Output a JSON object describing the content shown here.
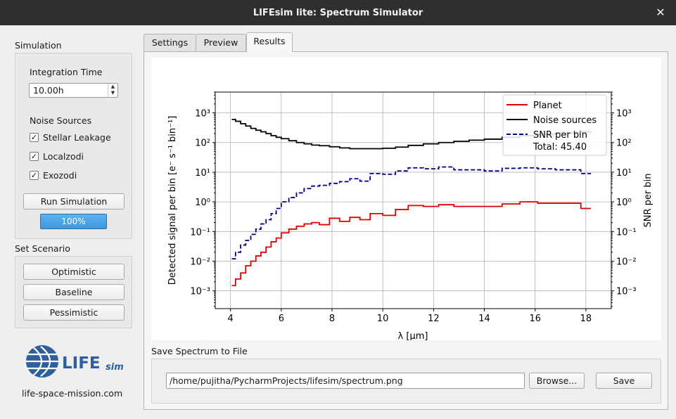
{
  "window": {
    "title": "LIFEsim lite: Spectrum Simulator",
    "close_glyph": "✕"
  },
  "simulation": {
    "group_label": "Simulation",
    "integration_time_label": "Integration Time",
    "integration_time_value": "10.00h",
    "noise_sources_label": "Noise Sources",
    "noise_sources": [
      {
        "label": "Stellar Leakage",
        "checked": true
      },
      {
        "label": "Localzodi",
        "checked": true
      },
      {
        "label": "Exozodi",
        "checked": true
      }
    ],
    "run_button": "Run Simulation",
    "progress_text": "100%",
    "progress_value": 100
  },
  "scenario": {
    "group_label": "Set Scenario",
    "buttons": [
      "Optimistic",
      "Baseline",
      "Pessimistic"
    ]
  },
  "logo": {
    "wordmark": "LIFE",
    "suffix": "sim",
    "url_text": "life-space-mission.com"
  },
  "tabs": [
    {
      "label": "Settings",
      "active": false
    },
    {
      "label": "Preview",
      "active": false
    },
    {
      "label": "Results",
      "active": true
    }
  ],
  "save": {
    "label": "Save Spectrum to File",
    "path": "/home/pujitha/PycharmProjects/lifesim/spectrum.png",
    "browse_button": "Browse...",
    "save_button": "Save"
  },
  "chart_data": {
    "type": "line",
    "xlabel": "λ [μm]",
    "ylabel_left": "Detected signal per bin [e⁻ s⁻¹ bin⁻¹]",
    "ylabel_right": "SNR per bin",
    "xlim": [
      3.4,
      19.0
    ],
    "xticks": [
      4,
      6,
      8,
      10,
      12,
      14,
      16,
      18
    ],
    "ylim_log": [
      -3.6,
      3.7
    ],
    "yticks_log": [
      -3,
      -2,
      -1,
      0,
      1,
      2,
      3
    ],
    "legend_position": "top-right",
    "legend": [
      "Planet",
      "Noise sources",
      "SNR per bin",
      "Total: 45.40"
    ],
    "grid": true,
    "colors": {
      "planet": "#e00000",
      "noise": "#000000",
      "snr": "#00008b"
    },
    "series": [
      {
        "name": "Planet",
        "step": true,
        "x": [
          4.05,
          4.2,
          4.4,
          4.6,
          4.8,
          5.0,
          5.2,
          5.4,
          5.6,
          5.8,
          6.0,
          6.3,
          6.6,
          6.9,
          7.2,
          7.5,
          7.9,
          8.3,
          8.7,
          9.1,
          9.5,
          10.0,
          10.5,
          11.0,
          11.6,
          12.2,
          12.8,
          13.4,
          14.0,
          14.7,
          15.4,
          16.1,
          16.8,
          17.8,
          18.2
        ],
        "y": [
          0.0015,
          0.0025,
          0.004,
          0.007,
          0.01,
          0.015,
          0.02,
          0.03,
          0.045,
          0.06,
          0.09,
          0.12,
          0.15,
          0.18,
          0.2,
          0.17,
          0.28,
          0.22,
          0.3,
          0.25,
          0.4,
          0.35,
          0.55,
          0.75,
          0.7,
          0.8,
          0.7,
          0.7,
          0.7,
          0.85,
          1.0,
          0.9,
          0.9,
          0.6,
          0.6
        ]
      },
      {
        "name": "Noise sources",
        "step": true,
        "x": [
          4.05,
          4.2,
          4.4,
          4.6,
          4.8,
          5.0,
          5.2,
          5.4,
          5.6,
          5.8,
          6.0,
          6.3,
          6.6,
          6.9,
          7.2,
          7.5,
          7.9,
          8.3,
          8.7,
          9.1,
          9.5,
          10.0,
          10.5,
          11.0,
          11.6,
          12.2,
          12.8,
          13.4,
          14.0,
          14.7,
          15.4,
          16.1,
          16.8,
          17.8,
          18.2
        ],
        "y": [
          600,
          520,
          430,
          360,
          300,
          260,
          230,
          200,
          170,
          150,
          135,
          115,
          100,
          90,
          82,
          78,
          72,
          66,
          62,
          62,
          62,
          64,
          70,
          80,
          90,
          100,
          110,
          120,
          130,
          150,
          170,
          190,
          210,
          230,
          240
        ]
      },
      {
        "name": "SNR per bin",
        "step": true,
        "dashed": true,
        "x": [
          4.05,
          4.2,
          4.4,
          4.6,
          4.8,
          5.0,
          5.2,
          5.4,
          5.6,
          5.8,
          6.0,
          6.3,
          6.6,
          6.9,
          7.2,
          7.5,
          7.9,
          8.3,
          8.7,
          9.1,
          9.5,
          10.0,
          10.5,
          11.0,
          11.6,
          12.2,
          12.8,
          13.4,
          14.0,
          14.7,
          15.4,
          16.1,
          16.8,
          17.8,
          18.2
        ],
        "y": [
          0.012,
          0.02,
          0.035,
          0.05,
          0.08,
          0.12,
          0.18,
          0.25,
          0.4,
          0.6,
          1.0,
          1.4,
          2.0,
          2.8,
          3.4,
          3.6,
          4.2,
          4.8,
          6.0,
          5.0,
          9.0,
          8.5,
          11.0,
          14.0,
          13.0,
          15.0,
          12.0,
          12.0,
          11.0,
          13.5,
          14.0,
          13.0,
          12.0,
          9.0,
          9.0
        ]
      }
    ]
  }
}
